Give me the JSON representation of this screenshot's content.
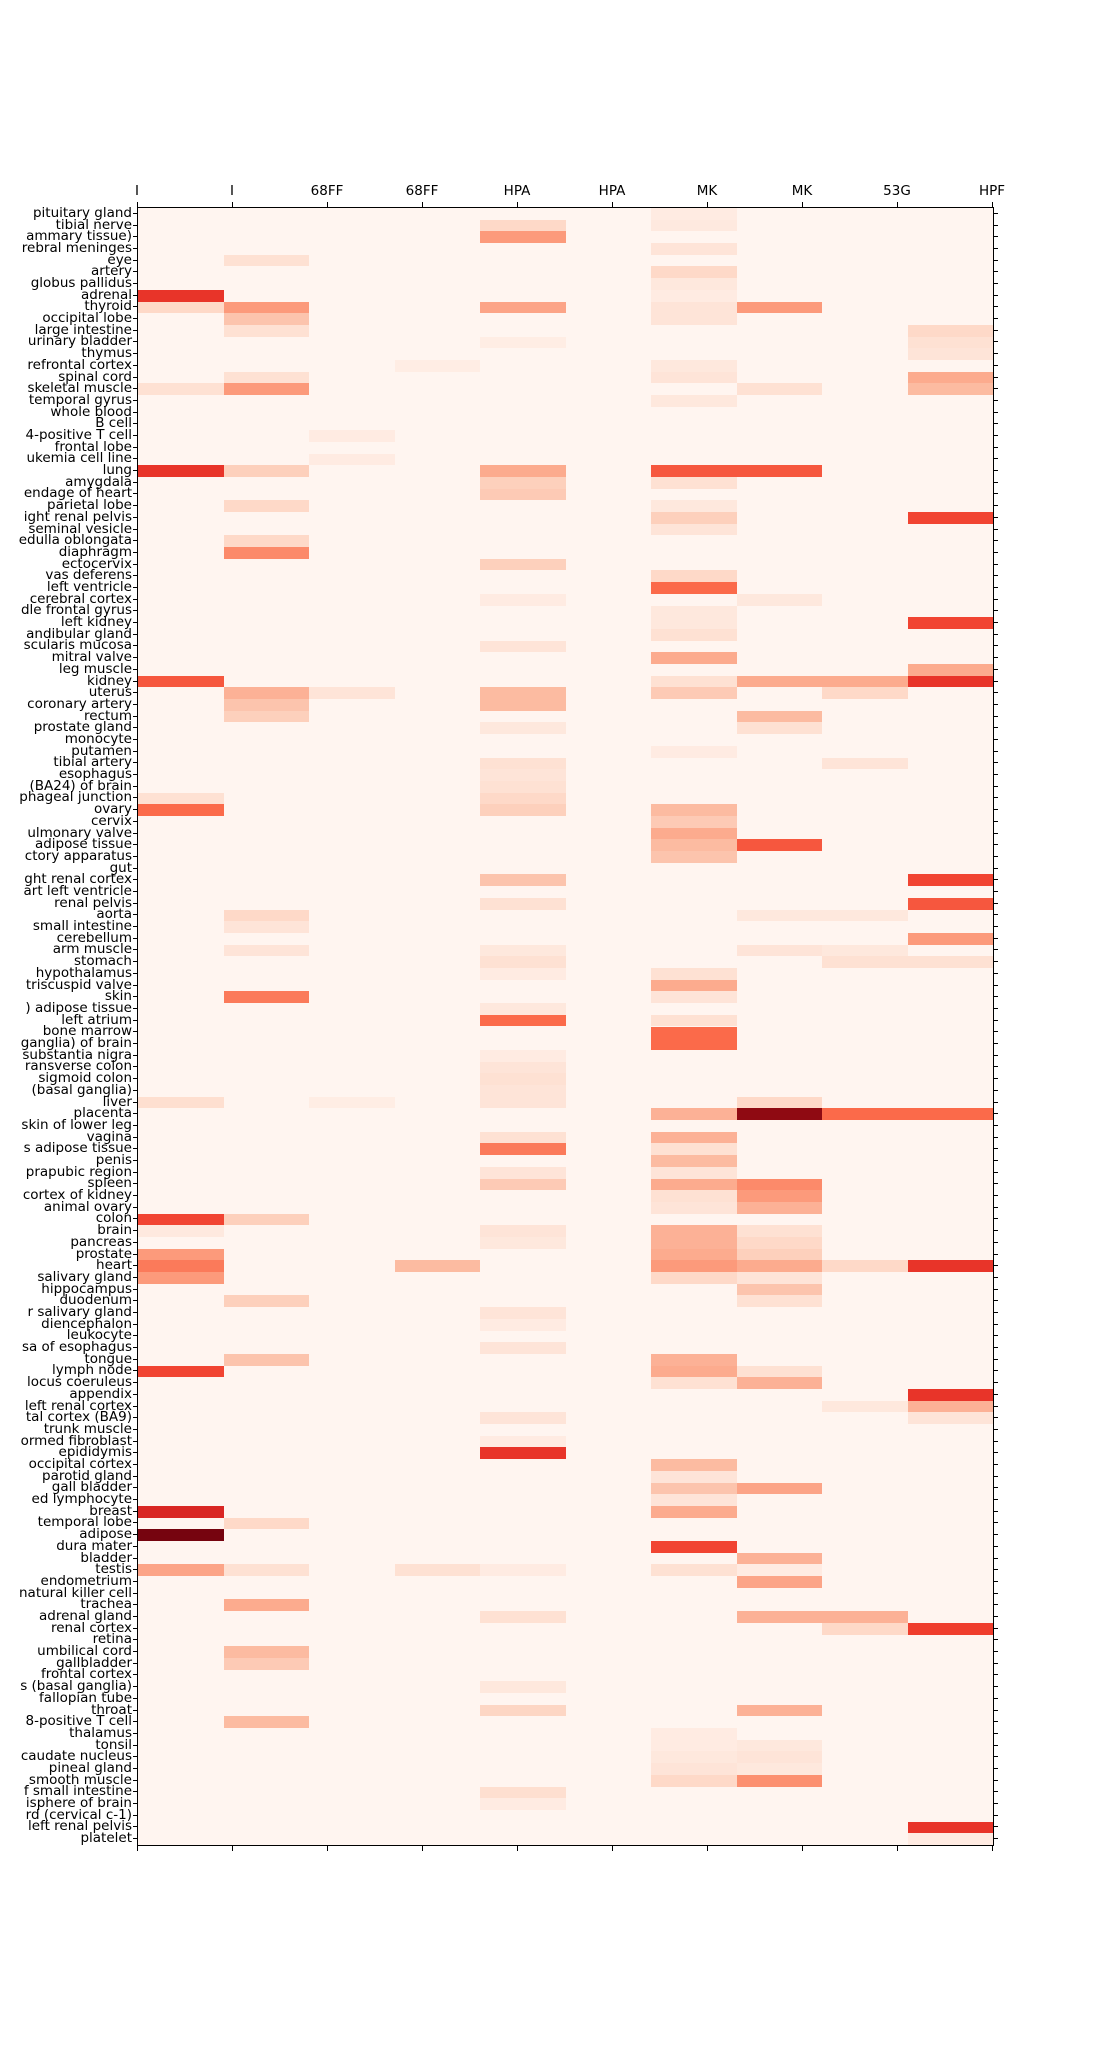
{
  "figure": {
    "title": "",
    "colormap": "Reds",
    "background_color": "#ffffff",
    "base_cell_color": "#fff5f0",
    "border_color": "#000000"
  },
  "chart_data": {
    "type": "heatmap",
    "legend": "none",
    "grid": false,
    "value_range": [
      0,
      1
    ],
    "columns": [
      "I",
      "I",
      "68FF",
      "68FF",
      "HPA",
      "HPA",
      "MK",
      "MK",
      "53G",
      "HPF"
    ],
    "rows": [
      "pituitary gland",
      "tibial nerve",
      "ammary tissue)",
      "rebral meninges",
      "eye",
      "artery",
      "globus pallidus",
      "adrenal",
      "thyroid",
      "occipital lobe",
      "large intestine",
      "urinary bladder",
      "thymus",
      "refrontal cortex",
      "spinal cord",
      "skeletal muscle",
      "temporal gyrus",
      "whole blood",
      "B cell",
      "4-positive T cell",
      "frontal lobe",
      "ukemia cell line",
      "lung",
      "amygdala",
      "endage of heart",
      "parietal lobe",
      "ight renal pelvis",
      "seminal vesicle",
      "edulla oblongata",
      "diaphragm",
      "ectocervix",
      "vas deferens",
      "left ventricle",
      "cerebral cortex",
      "dle frontal gyrus",
      "left kidney",
      "andibular gland",
      "scularis mucosa",
      "mitral valve",
      "leg muscle",
      "kidney",
      "uterus",
      "coronary artery",
      "rectum",
      "prostate gland",
      "monocyte",
      "putamen",
      "tibial artery",
      "esophagus",
      "(BA24) of brain",
      "phageal junction",
      "ovary",
      "cervix",
      "ulmonary valve",
      "adipose tissue",
      "ctory apparatus",
      "gut",
      "ght renal cortex",
      "art left ventricle",
      "renal pelvis",
      "aorta",
      "small intestine",
      "cerebellum",
      "arm muscle",
      "stomach",
      "hypothalamus",
      "triscuspid valve",
      "skin",
      ") adipose tissue",
      "left atrium",
      "bone marrow",
      "ganglia) of brain",
      "substantia nigra",
      "ransverse colon",
      "sigmoid colon",
      "(basal ganglia)",
      "liver",
      "placenta",
      "skin of lower leg",
      "vagina",
      "s adipose tissue",
      "penis",
      "prapubic region",
      "spleen",
      "cortex of kidney",
      "animal ovary",
      "colon",
      "brain",
      "pancreas",
      "prostate",
      "heart",
      "salivary gland",
      "hippocampus",
      "duodenum",
      "r salivary gland",
      "diencephalon",
      "leukocyte",
      "sa of esophagus",
      "tongue",
      "lymph node",
      "locus coeruleus",
      "appendix",
      "left renal cortex",
      "tal cortex (BA9)",
      "trunk muscle",
      "ormed fibroblast",
      "epididymis",
      "occipital cortex",
      "parotid gland",
      "gall bladder",
      "ed lymphocyte",
      "breast",
      "temporal lobe",
      "adipose",
      "dura mater",
      "bladder",
      "testis",
      "endometrium",
      "natural killer cell",
      "trachea",
      "adrenal gland",
      "renal cortex",
      "retina",
      "umbilical cord",
      "gallbladder",
      "frontal cortex",
      "s (basal ganglia)",
      "fallopian tube",
      "throat",
      "8-positive T cell",
      "thalamus",
      "tonsil",
      "caudate nucleus",
      "pineal gland",
      "smooth muscle",
      "f small intestine",
      "isphere of brain",
      "rd (cervical c-1)",
      "left renal pelvis",
      "platelet"
    ],
    "cells": [
      [
        0,
        6,
        0.06
      ],
      [
        1,
        4,
        0.15
      ],
      [
        1,
        6,
        0.07
      ],
      [
        2,
        4,
        0.35
      ],
      [
        3,
        6,
        0.1
      ],
      [
        4,
        1,
        0.12
      ],
      [
        5,
        6,
        0.15
      ],
      [
        6,
        6,
        0.08
      ],
      [
        7,
        0,
        0.65
      ],
      [
        7,
        6,
        0.06
      ],
      [
        8,
        0,
        0.15
      ],
      [
        8,
        1,
        0.35
      ],
      [
        8,
        4,
        0.32
      ],
      [
        8,
        6,
        0.1
      ],
      [
        8,
        7,
        0.35
      ],
      [
        9,
        1,
        0.22
      ],
      [
        9,
        6,
        0.1
      ],
      [
        10,
        1,
        0.12
      ],
      [
        10,
        9,
        0.15
      ],
      [
        11,
        4,
        0.05
      ],
      [
        11,
        9,
        0.12
      ],
      [
        12,
        9,
        0.1
      ],
      [
        13,
        3,
        0.05
      ],
      [
        13,
        6,
        0.08
      ],
      [
        14,
        1,
        0.12
      ],
      [
        14,
        6,
        0.1
      ],
      [
        14,
        9,
        0.3
      ],
      [
        15,
        0,
        0.12
      ],
      [
        15,
        1,
        0.35
      ],
      [
        15,
        7,
        0.12
      ],
      [
        15,
        9,
        0.25
      ],
      [
        16,
        6,
        0.08
      ],
      [
        19,
        2,
        0.06
      ],
      [
        21,
        2,
        0.06
      ],
      [
        22,
        0,
        0.65
      ],
      [
        22,
        1,
        0.18
      ],
      [
        22,
        4,
        0.3
      ],
      [
        22,
        6,
        0.55
      ],
      [
        22,
        7,
        0.55
      ],
      [
        23,
        4,
        0.18
      ],
      [
        23,
        6,
        0.12
      ],
      [
        24,
        4,
        0.2
      ],
      [
        25,
        1,
        0.15
      ],
      [
        25,
        6,
        0.08
      ],
      [
        26,
        6,
        0.18
      ],
      [
        26,
        9,
        0.6
      ],
      [
        27,
        6,
        0.1
      ],
      [
        28,
        1,
        0.15
      ],
      [
        29,
        1,
        0.4
      ],
      [
        30,
        4,
        0.18
      ],
      [
        31,
        6,
        0.15
      ],
      [
        32,
        6,
        0.5
      ],
      [
        33,
        4,
        0.06
      ],
      [
        33,
        7,
        0.08
      ],
      [
        34,
        6,
        0.08
      ],
      [
        35,
        6,
        0.08
      ],
      [
        35,
        9,
        0.6
      ],
      [
        36,
        6,
        0.12
      ],
      [
        37,
        4,
        0.1
      ],
      [
        38,
        6,
        0.3
      ],
      [
        39,
        9,
        0.3
      ],
      [
        40,
        0,
        0.55
      ],
      [
        40,
        6,
        0.12
      ],
      [
        40,
        7,
        0.3
      ],
      [
        40,
        8,
        0.3
      ],
      [
        40,
        9,
        0.65
      ],
      [
        41,
        1,
        0.28
      ],
      [
        41,
        2,
        0.1
      ],
      [
        41,
        4,
        0.25
      ],
      [
        41,
        6,
        0.2
      ],
      [
        41,
        8,
        0.15
      ],
      [
        42,
        1,
        0.22
      ],
      [
        42,
        4,
        0.25
      ],
      [
        43,
        1,
        0.18
      ],
      [
        43,
        7,
        0.25
      ],
      [
        44,
        4,
        0.08
      ],
      [
        44,
        7,
        0.12
      ],
      [
        46,
        6,
        0.06
      ],
      [
        47,
        4,
        0.12
      ],
      [
        47,
        8,
        0.1
      ],
      [
        48,
        4,
        0.1
      ],
      [
        49,
        4,
        0.12
      ],
      [
        50,
        0,
        0.12
      ],
      [
        50,
        4,
        0.15
      ],
      [
        51,
        0,
        0.5
      ],
      [
        51,
        4,
        0.18
      ],
      [
        51,
        6,
        0.25
      ],
      [
        52,
        6,
        0.2
      ],
      [
        53,
        6,
        0.3
      ],
      [
        54,
        6,
        0.25
      ],
      [
        54,
        7,
        0.55
      ],
      [
        55,
        6,
        0.22
      ],
      [
        57,
        4,
        0.22
      ],
      [
        57,
        9,
        0.6
      ],
      [
        59,
        4,
        0.12
      ],
      [
        59,
        9,
        0.55
      ],
      [
        60,
        1,
        0.15
      ],
      [
        60,
        7,
        0.08
      ],
      [
        60,
        8,
        0.08
      ],
      [
        61,
        1,
        0.1
      ],
      [
        62,
        9,
        0.35
      ],
      [
        63,
        1,
        0.1
      ],
      [
        63,
        4,
        0.08
      ],
      [
        63,
        7,
        0.1
      ],
      [
        63,
        8,
        0.08
      ],
      [
        64,
        4,
        0.12
      ],
      [
        64,
        8,
        0.12
      ],
      [
        64,
        9,
        0.12
      ],
      [
        65,
        4,
        0.06
      ],
      [
        65,
        6,
        0.12
      ],
      [
        66,
        6,
        0.3
      ],
      [
        67,
        1,
        0.45
      ],
      [
        67,
        6,
        0.1
      ],
      [
        68,
        4,
        0.08
      ],
      [
        69,
        4,
        0.5
      ],
      [
        69,
        6,
        0.12
      ],
      [
        70,
        6,
        0.5
      ],
      [
        71,
        6,
        0.5
      ],
      [
        72,
        4,
        0.06
      ],
      [
        73,
        4,
        0.1
      ],
      [
        74,
        4,
        0.12
      ],
      [
        75,
        4,
        0.1
      ],
      [
        76,
        0,
        0.13
      ],
      [
        76,
        2,
        0.05
      ],
      [
        76,
        4,
        0.1
      ],
      [
        76,
        7,
        0.15
      ],
      [
        77,
        6,
        0.28
      ],
      [
        77,
        7,
        0.92
      ],
      [
        77,
        8,
        0.5
      ],
      [
        77,
        9,
        0.5
      ],
      [
        79,
        4,
        0.12
      ],
      [
        79,
        6,
        0.28
      ],
      [
        80,
        4,
        0.45
      ],
      [
        80,
        6,
        0.12
      ],
      [
        81,
        6,
        0.25
      ],
      [
        82,
        4,
        0.1
      ],
      [
        82,
        6,
        0.1
      ],
      [
        83,
        4,
        0.2
      ],
      [
        83,
        6,
        0.3
      ],
      [
        83,
        7,
        0.4
      ],
      [
        84,
        6,
        0.12
      ],
      [
        84,
        7,
        0.35
      ],
      [
        85,
        6,
        0.1
      ],
      [
        85,
        7,
        0.28
      ],
      [
        86,
        0,
        0.6
      ],
      [
        86,
        1,
        0.18
      ],
      [
        87,
        0,
        0.07
      ],
      [
        87,
        4,
        0.1
      ],
      [
        87,
        6,
        0.28
      ],
      [
        87,
        7,
        0.12
      ],
      [
        88,
        4,
        0.08
      ],
      [
        88,
        6,
        0.28
      ],
      [
        88,
        7,
        0.15
      ],
      [
        89,
        0,
        0.35
      ],
      [
        89,
        6,
        0.3
      ],
      [
        89,
        7,
        0.18
      ],
      [
        90,
        0,
        0.45
      ],
      [
        90,
        3,
        0.25
      ],
      [
        90,
        6,
        0.35
      ],
      [
        90,
        7,
        0.3
      ],
      [
        90,
        8,
        0.15
      ],
      [
        90,
        9,
        0.65
      ],
      [
        91,
        0,
        0.35
      ],
      [
        91,
        6,
        0.15
      ],
      [
        91,
        7,
        0.1
      ],
      [
        92,
        7,
        0.22
      ],
      [
        93,
        1,
        0.18
      ],
      [
        93,
        7,
        0.12
      ],
      [
        94,
        4,
        0.1
      ],
      [
        95,
        4,
        0.06
      ],
      [
        97,
        4,
        0.1
      ],
      [
        98,
        1,
        0.22
      ],
      [
        98,
        6,
        0.28
      ],
      [
        99,
        0,
        0.6
      ],
      [
        99,
        6,
        0.3
      ],
      [
        99,
        7,
        0.12
      ],
      [
        100,
        6,
        0.12
      ],
      [
        100,
        7,
        0.28
      ],
      [
        101,
        9,
        0.65
      ],
      [
        102,
        8,
        0.08
      ],
      [
        102,
        9,
        0.28
      ],
      [
        103,
        4,
        0.1
      ],
      [
        103,
        9,
        0.1
      ],
      [
        105,
        4,
        0.06
      ],
      [
        106,
        4,
        0.65
      ],
      [
        107,
        6,
        0.25
      ],
      [
        108,
        6,
        0.1
      ],
      [
        109,
        6,
        0.22
      ],
      [
        109,
        7,
        0.32
      ],
      [
        110,
        6,
        0.1
      ],
      [
        111,
        0,
        0.7
      ],
      [
        111,
        6,
        0.3
      ],
      [
        112,
        1,
        0.15
      ],
      [
        113,
        0,
        0.97
      ],
      [
        114,
        6,
        0.6
      ],
      [
        115,
        7,
        0.28
      ],
      [
        116,
        0,
        0.32
      ],
      [
        116,
        1,
        0.12
      ],
      [
        116,
        3,
        0.12
      ],
      [
        116,
        4,
        0.06
      ],
      [
        116,
        6,
        0.12
      ],
      [
        116,
        7,
        0.06
      ],
      [
        117,
        7,
        0.32
      ],
      [
        119,
        1,
        0.3
      ],
      [
        120,
        4,
        0.12
      ],
      [
        120,
        7,
        0.28
      ],
      [
        120,
        8,
        0.28
      ],
      [
        121,
        8,
        0.15
      ],
      [
        121,
        9,
        0.62
      ],
      [
        123,
        1,
        0.25
      ],
      [
        124,
        1,
        0.2
      ],
      [
        126,
        4,
        0.08
      ],
      [
        128,
        4,
        0.16
      ],
      [
        128,
        7,
        0.28
      ],
      [
        129,
        1,
        0.25
      ],
      [
        130,
        6,
        0.06
      ],
      [
        131,
        6,
        0.06
      ],
      [
        131,
        7,
        0.08
      ],
      [
        132,
        6,
        0.08
      ],
      [
        132,
        7,
        0.1
      ],
      [
        133,
        6,
        0.1
      ],
      [
        133,
        7,
        0.08
      ],
      [
        134,
        6,
        0.15
      ],
      [
        134,
        7,
        0.38
      ],
      [
        135,
        4,
        0.13
      ],
      [
        136,
        4,
        0.06
      ],
      [
        138,
        9,
        0.65
      ],
      [
        139,
        9,
        0.06
      ]
    ]
  }
}
